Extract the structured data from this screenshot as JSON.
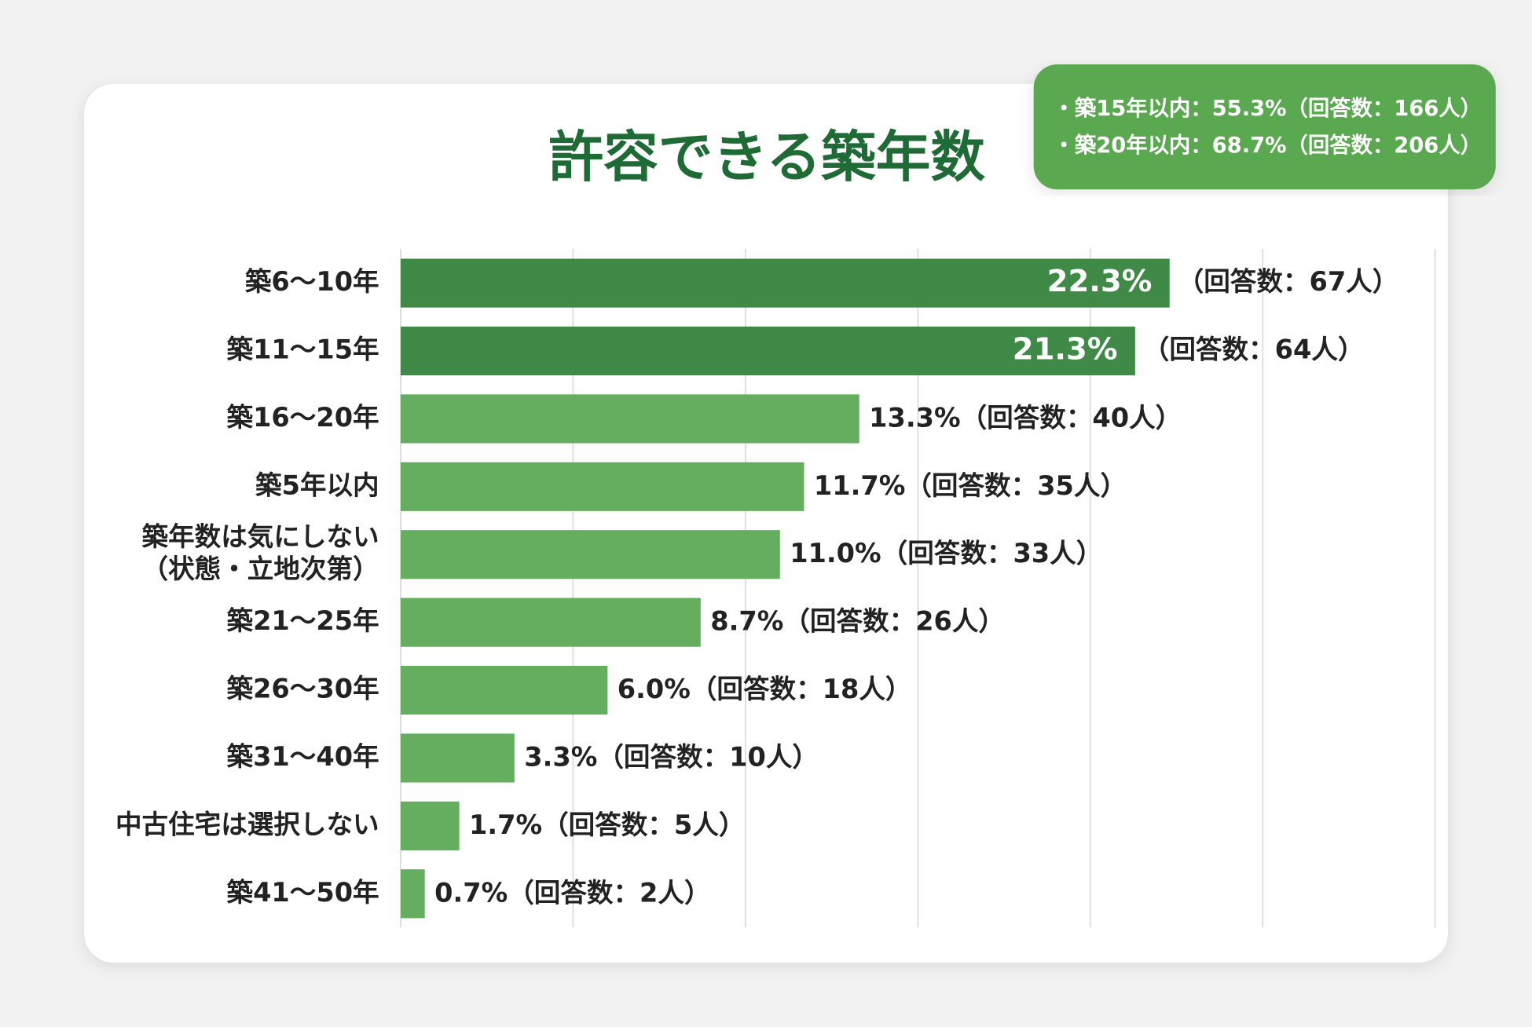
{
  "chart_data": {
    "type": "bar",
    "orientation": "horizontal",
    "title": "許容できる築年数",
    "notes": [
      "・築15年以内：55.3%（回答数：166人）",
      "・築20年以内：68.7%（回答数：206人）"
    ],
    "categories": [
      [
        "築6〜10年"
      ],
      [
        "築11〜15年"
      ],
      [
        "築16〜20年"
      ],
      [
        "築5年以内"
      ],
      [
        "築年数は気にしない",
        "（状態・立地次第）"
      ],
      [
        "築21〜25年"
      ],
      [
        "築26〜30年"
      ],
      [
        "築31〜40年"
      ],
      [
        "中古住宅は選択しない"
      ],
      [
        "築41〜50年"
      ]
    ],
    "values": [
      22.3,
      21.3,
      13.3,
      11.7,
      11.0,
      8.7,
      6.0,
      3.3,
      1.7,
      0.7
    ],
    "value_labels": [
      "22.3%",
      "21.3%",
      "13.3%",
      "11.7%",
      "11.0%",
      "8.7%",
      "6.0%",
      "3.3%",
      "1.7%",
      "0.7%"
    ],
    "count_labels": [
      "（回答数：67人）",
      "（回答数：64人）",
      "（回答数：40人）",
      "（回答数：35人）",
      "（回答数：33人）",
      "（回答数：26人）",
      "（回答数：18人）",
      "（回答数：10人）",
      "（回答数：5人）",
      "（回答数：2人）"
    ],
    "colors": [
      "#3f8a47",
      "#3f8a47",
      "#66ae5f",
      "#66ae5f",
      "#66ae5f",
      "#66ae5f",
      "#66ae5f",
      "#66ae5f",
      "#66ae5f",
      "#66ae5f"
    ],
    "labels_inside": [
      true,
      true,
      false,
      false,
      false,
      false,
      false,
      false,
      false,
      false
    ],
    "xlim": [
      0,
      30
    ],
    "xticks": [
      0,
      5,
      10,
      15,
      20,
      25,
      30
    ],
    "grid": true
  }
}
